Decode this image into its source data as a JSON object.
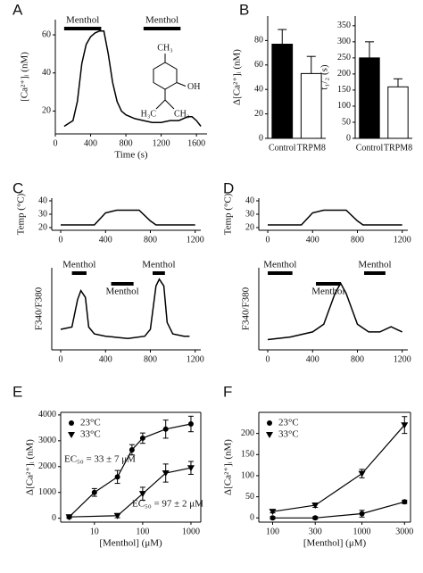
{
  "chart_data": [
    {
      "type": "line",
      "panel_label": "A",
      "x_label": "Time (s)",
      "y_label": "[Ca²⁺]ᵢ (nM)",
      "x": [
        100,
        200,
        250,
        300,
        350,
        400,
        450,
        500,
        550,
        600,
        650,
        700,
        750,
        800,
        900,
        1000,
        1100,
        1200,
        1300,
        1400,
        1500,
        1550,
        1600,
        1650
      ],
      "series": [
        {
          "name": "[Ca²⁺]ᵢ",
          "color": "#000000",
          "values": [
            12,
            15,
            25,
            45,
            55,
            59,
            61,
            62,
            62,
            50,
            35,
            25,
            20,
            18,
            16,
            15,
            14,
            14,
            15,
            15,
            17,
            17,
            15,
            12
          ]
        }
      ],
      "xlim": [
        0,
        1720
      ],
      "xticks": [
        0,
        400,
        800,
        1200,
        1600
      ],
      "ylim": [
        8,
        68
      ],
      "yticks": [
        20,
        40,
        60
      ],
      "annotations": [
        {
          "text": "Menthol",
          "x": [
            100,
            520
          ]
        },
        {
          "text": "Menthol",
          "x": [
            1000,
            1420
          ]
        }
      ],
      "structure_labels": [
        "CH₃",
        "OH",
        "H₃C",
        "CH₃"
      ]
    },
    {
      "type": "bar",
      "panel_label": "B",
      "y_label": "Δ[Ca²⁺]ᵢ (nM)",
      "categories": [
        "Control",
        "TRPM8"
      ],
      "colors": [
        "#000000",
        "#ffffff"
      ],
      "values": [
        77,
        53
      ],
      "errors": [
        12,
        14
      ],
      "ylim": [
        0,
        100
      ],
      "yticks": [
        0,
        20,
        40,
        60,
        80
      ]
    },
    {
      "type": "bar",
      "y_label": "t₁/₂ (s)",
      "categories": [
        "Control",
        "TRPM8"
      ],
      "colors": [
        "#000000",
        "#ffffff"
      ],
      "values": [
        250,
        160
      ],
      "errors": [
        50,
        25
      ],
      "ylim": [
        0,
        380
      ],
      "yticks": [
        0,
        50,
        100,
        150,
        200,
        250,
        300,
        350
      ]
    },
    {
      "type": "line",
      "panel_label": "C",
      "y_label": "Temp (°C)",
      "x": [
        0,
        300,
        400,
        500,
        700,
        800,
        850,
        1200
      ],
      "series": [
        {
          "name": "Temp",
          "color": "#000000",
          "values": [
            22,
            22,
            31,
            33,
            33,
            25,
            22,
            22
          ]
        }
      ],
      "xlim": [
        -80,
        1250
      ],
      "xticks": [
        0,
        400,
        800,
        1200
      ],
      "ylim": [
        18,
        42
      ],
      "yticks": [
        20,
        30,
        40
      ]
    },
    {
      "type": "line",
      "y_label": "F340/F380",
      "x": [
        0,
        100,
        150,
        180,
        220,
        250,
        300,
        400,
        600,
        750,
        800,
        850,
        880,
        920,
        950,
        1000,
        1100,
        1150
      ],
      "series": [
        {
          "name": "F340/F380",
          "color": "#000000",
          "values": [
            1.35,
            1.4,
            2.0,
            2.2,
            2.05,
            1.4,
            1.25,
            1.2,
            1.15,
            1.2,
            1.35,
            2.3,
            2.45,
            2.3,
            1.5,
            1.25,
            1.2,
            1.2
          ]
        }
      ],
      "xlim": [
        -80,
        1250
      ],
      "xticks": [
        0,
        400,
        800,
        1200
      ],
      "ylim": [
        0.9,
        2.7
      ],
      "annotations": [
        {
          "text": "Menthol",
          "x": [
            100,
            230
          ]
        },
        {
          "text": "Menthol",
          "x": [
            450,
            650
          ]
        },
        {
          "text": "Menthol",
          "x": [
            820,
            930
          ]
        }
      ]
    },
    {
      "type": "line",
      "panel_label": "D",
      "y_label": "Temp (°C)",
      "x": [
        0,
        300,
        400,
        500,
        700,
        800,
        850,
        1200
      ],
      "series": [
        {
          "name": "Temp",
          "color": "#000000",
          "values": [
            22,
            22,
            31,
            33,
            33,
            25,
            22,
            22
          ]
        }
      ],
      "xlim": [
        -80,
        1250
      ],
      "xticks": [
        0,
        400,
        800,
        1200
      ],
      "ylim": [
        18,
        42
      ],
      "yticks": [
        20,
        30,
        40
      ]
    },
    {
      "type": "line",
      "y_label": "F340/F380",
      "x": [
        0,
        200,
        400,
        500,
        600,
        650,
        700,
        800,
        900,
        1000,
        1100,
        1200
      ],
      "series": [
        {
          "name": "F340/F380",
          "color": "#000000",
          "values": [
            1.0,
            1.05,
            1.15,
            1.3,
            1.9,
            2.1,
            1.9,
            1.3,
            1.15,
            1.15,
            1.25,
            1.15
          ]
        }
      ],
      "xlim": [
        -80,
        1250
      ],
      "xticks": [
        0,
        400,
        800,
        1200
      ],
      "ylim": [
        0.8,
        2.4
      ],
      "annotations": [
        {
          "text": "Menthol",
          "x": [
            0,
            220
          ]
        },
        {
          "text": "Menthol",
          "x": [
            430,
            650
          ]
        },
        {
          "text": "Menthol",
          "x": [
            860,
            1050
          ]
        }
      ]
    },
    {
      "type": "scatter",
      "panel_label": "E",
      "x_label": "[Menthol] (μM)",
      "y_label": "Δ[Ca²⁺]ᵢ (nM)",
      "log_x": true,
      "series": [
        {
          "name": "23°C",
          "marker": "circle",
          "color": "#000000",
          "x": [
            3,
            10,
            30,
            60,
            100,
            300,
            1000
          ],
          "values": [
            50,
            1000,
            1600,
            2650,
            3100,
            3450,
            3650
          ],
          "errors": [
            50,
            150,
            250,
            200,
            200,
            350,
            300
          ]
        },
        {
          "name": "33°C",
          "marker": "triangle",
          "color": "#000000",
          "x": [
            3,
            30,
            100,
            300,
            1000
          ],
          "values": [
            50,
            100,
            950,
            1750,
            1950
          ],
          "errors": [
            50,
            80,
            250,
            350,
            250
          ]
        }
      ],
      "xlim": [
        2,
        1600
      ],
      "xticks": [
        10,
        100,
        1000
      ],
      "ylim": [
        -150,
        4100
      ],
      "yticks": [
        0,
        1000,
        2000,
        3000,
        4000
      ],
      "annotations": [
        {
          "text": "EC₅₀ = 33 ± 7 μM"
        },
        {
          "text": "EC₅₀ = 97 ± 2 μM"
        }
      ]
    },
    {
      "type": "scatter",
      "panel_label": "F",
      "x_label": "[Menthol] (μM)",
      "y_label": "Δ[Ca²⁺]ᵢ (nM)",
      "log_x": true,
      "series": [
        {
          "name": "23°C",
          "marker": "circle",
          "color": "#000000",
          "x": [
            100,
            300,
            1000,
            3000
          ],
          "values": [
            0,
            0,
            10,
            38
          ],
          "errors": [
            3,
            3,
            8,
            4
          ]
        },
        {
          "name": "33°C",
          "marker": "triangle",
          "color": "#000000",
          "x": [
            100,
            300,
            1000,
            3000
          ],
          "values": [
            15,
            30,
            105,
            220
          ],
          "errors": [
            3,
            5,
            10,
            20
          ]
        }
      ],
      "xlim": [
        70,
        3500
      ],
      "xticks": [
        100,
        300,
        1000,
        3000
      ],
      "ylim": [
        -10,
        250
      ],
      "yticks": [
        0,
        50,
        100,
        150,
        200
      ]
    }
  ]
}
